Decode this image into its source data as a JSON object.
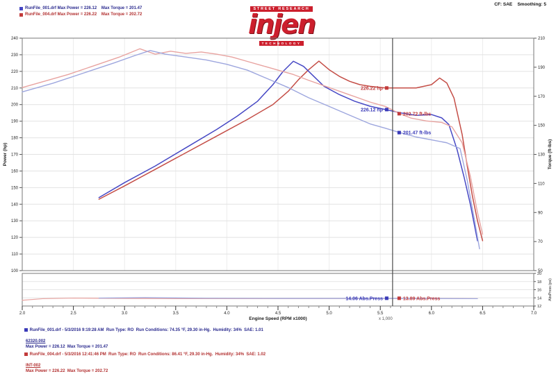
{
  "header": {
    "settings": "CF: SAE    Smoothing: 5",
    "legend": [
      {
        "color": "#4547c4",
        "text": "RunFile_001.drf Max Power = 226.12    Max Torque = 201.47"
      },
      {
        "color": "#c23b3b",
        "text": "RunFile_004.drf Max Power = 226.22    Max Torque = 202.72"
      }
    ],
    "logo": {
      "top": "STREET RESEARCH",
      "name": "injen",
      "bottom": "TECHNOLOGY",
      "color": "#cc1f2d"
    }
  },
  "chart_data": {
    "type": "line",
    "title": "",
    "xlabel": "Engine Speed (RPM x1000)",
    "x_note": "x 1,000",
    "ylabel_left": "Power (hp)",
    "ylabel_right": "Torque (ft-lbs)",
    "xlim": [
      2.0,
      7.0
    ],
    "xtick_step": 0.5,
    "power_ylim": [
      100,
      240
    ],
    "power_tick_step": 10,
    "torque_ylim": [
      50,
      210
    ],
    "torque_tick_step": 20,
    "grid": true,
    "legend_position": "top-left",
    "cursor_rpm": 5.62,
    "series": [
      {
        "name": "RunFile_004 Power (hp)",
        "axis": "power",
        "color": "#c44d46",
        "width": 1.5,
        "points": [
          [
            2.75,
            143
          ],
          [
            3.0,
            151
          ],
          [
            3.3,
            161
          ],
          [
            3.6,
            171
          ],
          [
            3.9,
            181
          ],
          [
            4.2,
            191
          ],
          [
            4.45,
            200
          ],
          [
            4.6,
            208
          ],
          [
            4.7,
            215
          ],
          [
            4.8,
            221
          ],
          [
            4.9,
            226.2
          ],
          [
            5.0,
            221
          ],
          [
            5.1,
            217
          ],
          [
            5.2,
            214
          ],
          [
            5.3,
            212
          ],
          [
            5.4,
            211
          ],
          [
            5.55,
            210
          ],
          [
            5.7,
            210
          ],
          [
            5.85,
            210
          ],
          [
            6.0,
            212
          ],
          [
            6.08,
            216
          ],
          [
            6.15,
            213
          ],
          [
            6.22,
            204
          ],
          [
            6.3,
            182
          ],
          [
            6.35,
            163
          ],
          [
            6.4,
            145
          ],
          [
            6.45,
            130
          ],
          [
            6.5,
            118
          ]
        ]
      },
      {
        "name": "RunFile_001 Power (hp)",
        "axis": "power",
        "color": "#4547c4",
        "width": 1.5,
        "points": [
          [
            2.75,
            144
          ],
          [
            3.0,
            153
          ],
          [
            3.3,
            163
          ],
          [
            3.6,
            174
          ],
          [
            3.9,
            185
          ],
          [
            4.1,
            193
          ],
          [
            4.3,
            202
          ],
          [
            4.45,
            212
          ],
          [
            4.55,
            220
          ],
          [
            4.65,
            226.1
          ],
          [
            4.75,
            223
          ],
          [
            4.85,
            217
          ],
          [
            4.95,
            211
          ],
          [
            5.1,
            206
          ],
          [
            5.25,
            202
          ],
          [
            5.4,
            199
          ],
          [
            5.55,
            197
          ],
          [
            5.7,
            195
          ],
          [
            5.85,
            193.5
          ],
          [
            6.0,
            194
          ],
          [
            6.1,
            192
          ],
          [
            6.17,
            188
          ],
          [
            6.25,
            173
          ],
          [
            6.32,
            156
          ],
          [
            6.38,
            140
          ],
          [
            6.45,
            118
          ]
        ]
      },
      {
        "name": "RunFile_004 Torque (ft-lbs)",
        "axis": "torque",
        "color": "#e8a3a0",
        "width": 1.4,
        "points": [
          [
            2.0,
            176
          ],
          [
            2.2,
            180
          ],
          [
            2.45,
            185
          ],
          [
            2.7,
            191
          ],
          [
            2.95,
            197
          ],
          [
            3.15,
            202.7
          ],
          [
            3.3,
            199
          ],
          [
            3.45,
            201
          ],
          [
            3.6,
            199.5
          ],
          [
            3.75,
            200.5
          ],
          [
            3.9,
            199
          ],
          [
            4.05,
            197
          ],
          [
            4.2,
            194
          ],
          [
            4.35,
            191
          ],
          [
            4.5,
            188
          ],
          [
            4.65,
            185
          ],
          [
            4.8,
            181
          ],
          [
            5.0,
            176
          ],
          [
            5.2,
            171
          ],
          [
            5.4,
            166
          ],
          [
            5.55,
            163
          ],
          [
            5.69,
            158
          ],
          [
            5.8,
            155
          ],
          [
            5.95,
            153
          ],
          [
            6.1,
            152
          ],
          [
            6.2,
            149
          ],
          [
            6.3,
            138
          ],
          [
            6.38,
            115
          ],
          [
            6.45,
            90
          ],
          [
            6.5,
            75
          ]
        ]
      },
      {
        "name": "RunFile_001 Torque (ft-lbs)",
        "axis": "torque",
        "color": "#9da6de",
        "width": 1.4,
        "points": [
          [
            2.0,
            173
          ],
          [
            2.3,
            179
          ],
          [
            2.6,
            186
          ],
          [
            2.9,
            193
          ],
          [
            3.1,
            198
          ],
          [
            3.25,
            201.5
          ],
          [
            3.4,
            199
          ],
          [
            3.6,
            197
          ],
          [
            3.8,
            195
          ],
          [
            4.0,
            192
          ],
          [
            4.2,
            188
          ],
          [
            4.4,
            182
          ],
          [
            4.6,
            176
          ],
          [
            4.8,
            169
          ],
          [
            5.0,
            163
          ],
          [
            5.2,
            157
          ],
          [
            5.4,
            151
          ],
          [
            5.55,
            148
          ],
          [
            5.69,
            145
          ],
          [
            5.85,
            142
          ],
          [
            6.0,
            140
          ],
          [
            6.15,
            138
          ],
          [
            6.28,
            134
          ],
          [
            6.35,
            112
          ],
          [
            6.42,
            85
          ],
          [
            6.47,
            65
          ]
        ]
      }
    ],
    "callouts": [
      {
        "text": "226.22 hp",
        "color": "#c23b3b",
        "axis": "power",
        "rpm": 5.54,
        "value": 210,
        "side": "left"
      },
      {
        "text": "226.12 hp",
        "color": "#3a3ab8",
        "axis": "power",
        "rpm": 5.54,
        "value": 197,
        "side": "left"
      },
      {
        "text": "202.72 ft-lbs",
        "color": "#c23b3b",
        "axis": "torque",
        "rpm": 5.69,
        "value": 158,
        "side": "right"
      },
      {
        "text": "201.47 ft-lbs",
        "color": "#3a3ab8",
        "axis": "torque",
        "rpm": 5.69,
        "value": 145,
        "side": "right"
      }
    ],
    "sub_chart": {
      "ylabel": "AbsPress (psi)",
      "ylim": [
        12,
        20
      ],
      "ticks": [
        20,
        18,
        16,
        14,
        12
      ],
      "series": [
        {
          "name": "Abs.Press run 004",
          "color": "#e8a3a0",
          "width": 1.2,
          "points": [
            [
              2.0,
              13.4
            ],
            [
              2.2,
              13.8
            ],
            [
              2.5,
              13.95
            ],
            [
              3.0,
              13.85
            ],
            [
              3.6,
              13.8
            ],
            [
              4.4,
              13.8
            ],
            [
              5.2,
              13.82
            ],
            [
              6.0,
              13.85
            ],
            [
              6.45,
              13.8
            ]
          ]
        },
        {
          "name": "Abs.Press run 001",
          "color": "#9da6de",
          "width": 1.2,
          "points": [
            [
              2.75,
              13.95
            ],
            [
              3.2,
              14.06
            ],
            [
              3.8,
              13.9
            ],
            [
              4.5,
              13.85
            ],
            [
              5.2,
              13.85
            ],
            [
              5.9,
              13.85
            ],
            [
              6.45,
              13.8
            ]
          ]
        }
      ],
      "callouts": [
        {
          "text": "14.06 Abs.Press",
          "color": "#3a3ab8",
          "value": 13.9,
          "side": "left"
        },
        {
          "text": "13.89 Abs.Press",
          "color": "#c23b3b",
          "value": 13.9,
          "side": "right"
        }
      ]
    }
  },
  "footer": {
    "runs": [
      {
        "color": "#3a3ab8",
        "line1": "RunFile_001.drf - 5/3/2016 9:19:28 AM  Run Type: RO  Run Conditions: 74.35 °F, 29.30 in-Hg.  Humidity: 34%  SAE: 1.01",
        "line2": "62320.002",
        "line3": "Max Power = 226.12  Max Torque = 201.47"
      },
      {
        "color": "#c23b3b",
        "line1": "RunFile_004.drf - 5/3/2016 12:41:46 PM  Run Type: RO  Run Conditions: 86.41 °F, 29.30 in-Hg.  Humidity: 34%  SAE: 1.02",
        "line2": "INT-002",
        "line3": "Max Power = 226.22  Max Torque = 202.72"
      }
    ]
  }
}
